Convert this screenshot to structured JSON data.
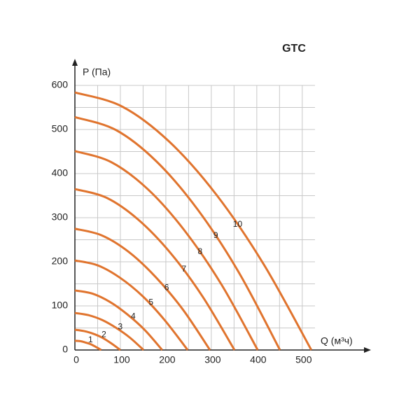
{
  "chart_data": {
    "type": "line",
    "title": "GTC",
    "x_label": "Q (м³ч)",
    "y_label": "P (Па)",
    "color": "#e0742e",
    "xlim": [
      0,
      528
    ],
    "ylim": [
      0,
      600
    ],
    "xticks": [
      0,
      100,
      200,
      300,
      400,
      500
    ],
    "yticks": [
      0,
      100,
      200,
      300,
      400,
      500,
      600
    ],
    "xgrid": [
      0,
      50,
      100,
      150,
      200,
      250,
      300,
      350,
      400,
      450,
      500
    ],
    "ygrid": [
      0,
      50,
      100,
      150,
      200,
      250,
      300,
      350,
      400,
      450,
      500,
      550,
      600
    ],
    "grid": true,
    "series": [
      {
        "name": "1",
        "x": [
          0,
          12,
          23,
          35,
          46,
          58
        ],
        "values": [
          21,
          20,
          17,
          13,
          7,
          0
        ]
      },
      {
        "name": "2",
        "x": [
          0,
          20,
          40,
          60,
          80,
          100
        ],
        "values": [
          46,
          43,
          37,
          28,
          15,
          0
        ]
      },
      {
        "name": "3",
        "x": [
          0,
          30,
          60,
          91,
          121,
          151
        ],
        "values": [
          84,
          79,
          68,
          50,
          28,
          0
        ]
      },
      {
        "name": "4",
        "x": [
          0,
          38,
          77,
          115,
          154,
          192
        ],
        "values": [
          135,
          128,
          109,
          81,
          45,
          0
        ]
      },
      {
        "name": "5",
        "x": [
          0,
          50,
          99,
          149,
          198,
          248
        ],
        "values": [
          203,
          192,
          164,
          122,
          67,
          0
        ]
      },
      {
        "name": "6",
        "x": [
          0,
          59,
          119,
          178,
          238,
          297
        ],
        "values": [
          275,
          260,
          222,
          165,
          91,
          0
        ]
      },
      {
        "name": "7",
        "x": [
          0,
          70,
          140,
          211,
          281,
          351
        ],
        "values": [
          365,
          345,
          295,
          219,
          121,
          0
        ]
      },
      {
        "name": "8",
        "x": [
          0,
          80,
          161,
          241,
          322,
          402
        ],
        "values": [
          451,
          426,
          364,
          271,
          149,
          0
        ]
      },
      {
        "name": "9",
        "x": [
          0,
          90,
          180,
          271,
          361,
          451
        ],
        "values": [
          528,
          499,
          427,
          317,
          175,
          0
        ]
      },
      {
        "name": "10",
        "x": [
          0,
          104,
          208,
          312,
          416,
          520
        ],
        "values": [
          584,
          552,
          472,
          351,
          193,
          0
        ]
      }
    ]
  }
}
